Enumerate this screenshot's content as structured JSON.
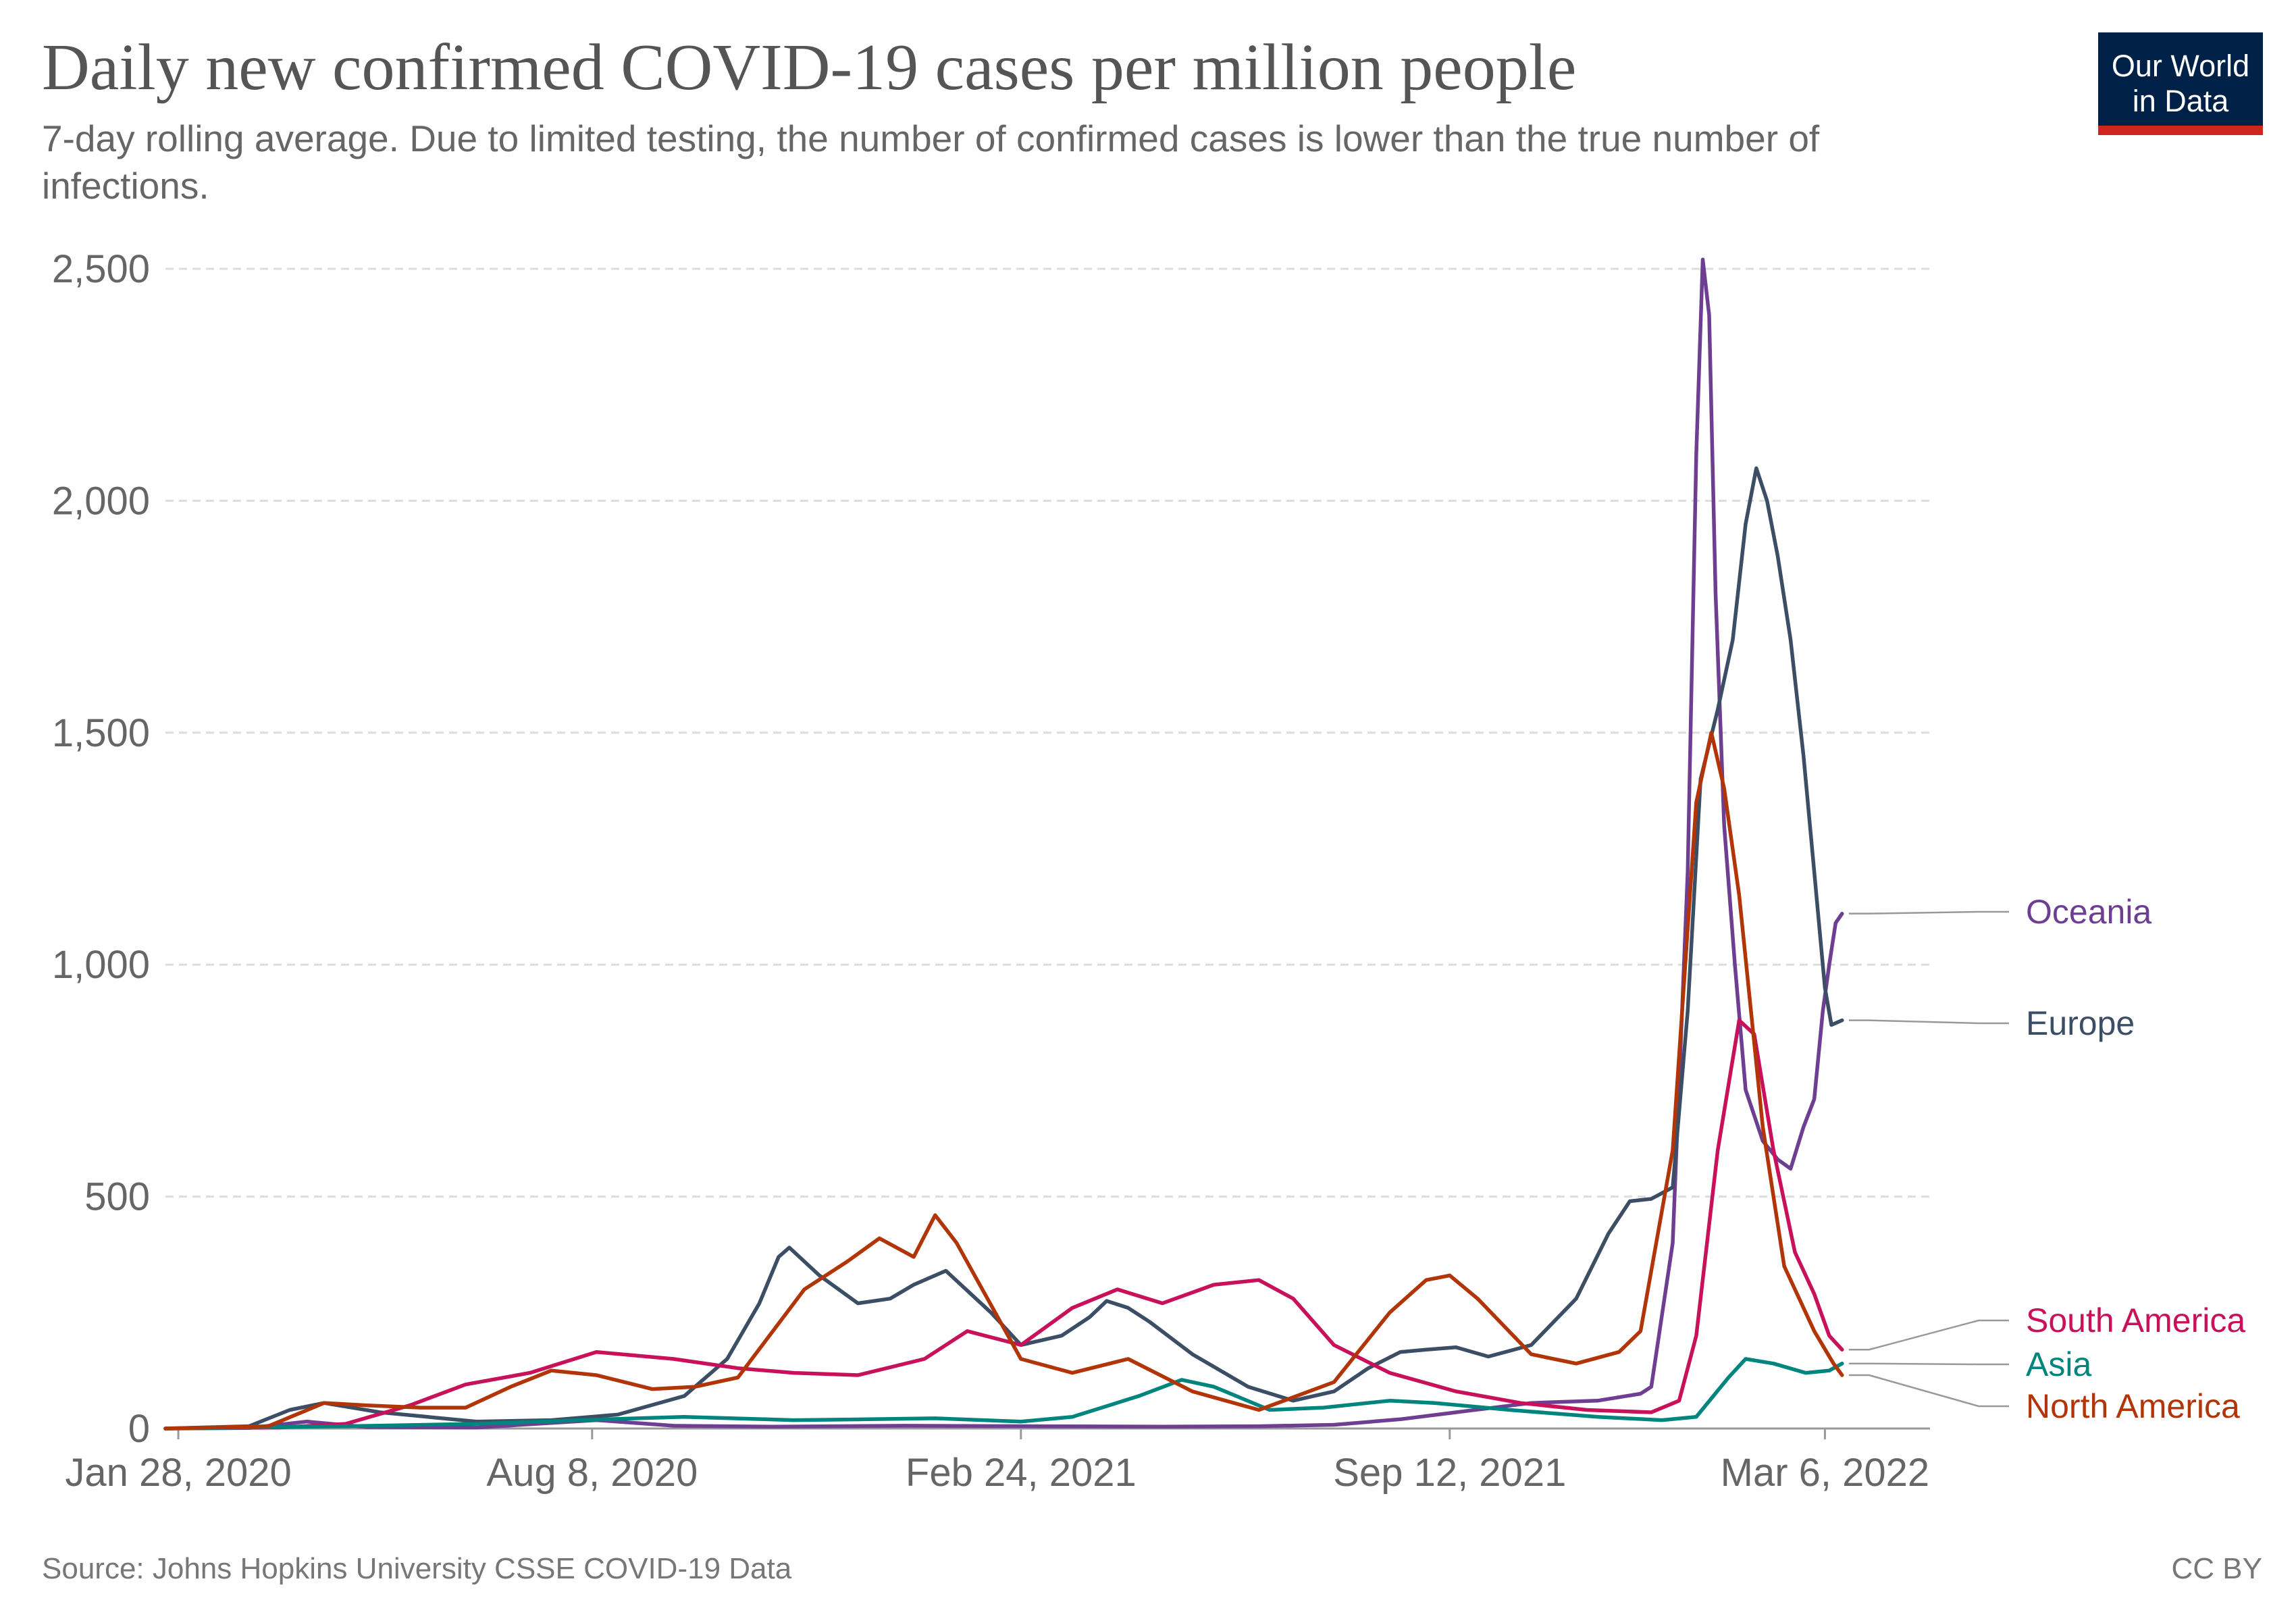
{
  "header": {
    "title": "Daily new confirmed COVID-19 cases per million people",
    "subtitle": "7-day rolling average. Due to limited testing, the number of confirmed cases is lower than the true number of infections."
  },
  "logo": {
    "line1": "Our World",
    "line2": "in Data",
    "bg_color": "#002147",
    "accent_color": "#ce261e"
  },
  "footer": {
    "source": "Source: Johns Hopkins University CSSE COVID-19 Data",
    "license": "CC BY"
  },
  "chart_data": {
    "type": "line",
    "title": "Daily new confirmed COVID-19 cases per million people",
    "xlabel": "",
    "ylabel": "",
    "xlim": [
      "2020-01-22",
      "2022-04-24"
    ],
    "ylim": [
      0,
      2500
    ],
    "x_ticks": [
      {
        "date": "2020-01-28",
        "label": "Jan 28, 2020"
      },
      {
        "date": "2020-08-08",
        "label": "Aug 8, 2020"
      },
      {
        "date": "2021-02-24",
        "label": "Feb 24, 2021"
      },
      {
        "date": "2021-09-12",
        "label": "Sep 12, 2021"
      },
      {
        "date": "2022-03-06",
        "label": "Mar 6, 2022"
      }
    ],
    "y_ticks": [
      {
        "value": 0,
        "label": "0"
      },
      {
        "value": 500,
        "label": "500"
      },
      {
        "value": 1000,
        "label": "1,000"
      },
      {
        "value": 1500,
        "label": "1,500"
      },
      {
        "value": 2000,
        "label": "2,000"
      },
      {
        "value": 2500,
        "label": "2,500"
      }
    ],
    "grid": "horizontal-dashed",
    "legend": "right",
    "series": [
      {
        "name": "Oceania",
        "color": "#6d3e91",
        "points": [
          [
            "2020-01-22",
            0
          ],
          [
            "2020-03-01",
            1
          ],
          [
            "2020-03-28",
            15
          ],
          [
            "2020-04-25",
            3
          ],
          [
            "2020-06-15",
            2
          ],
          [
            "2020-07-20",
            12
          ],
          [
            "2020-08-10",
            18
          ],
          [
            "2020-09-15",
            6
          ],
          [
            "2020-11-01",
            4
          ],
          [
            "2021-01-01",
            6
          ],
          [
            "2021-03-01",
            5
          ],
          [
            "2021-05-01",
            4
          ],
          [
            "2021-06-15",
            5
          ],
          [
            "2021-07-20",
            8
          ],
          [
            "2021-08-20",
            20
          ],
          [
            "2021-09-15",
            35
          ],
          [
            "2021-10-20",
            55
          ],
          [
            "2021-11-20",
            60
          ],
          [
            "2021-12-10",
            75
          ],
          [
            "2021-12-15",
            90
          ],
          [
            "2021-12-25",
            400
          ],
          [
            "2022-01-01",
            1200
          ],
          [
            "2022-01-05",
            2100
          ],
          [
            "2022-01-08",
            2520
          ],
          [
            "2022-01-11",
            2400
          ],
          [
            "2022-01-14",
            1800
          ],
          [
            "2022-01-18",
            1300
          ],
          [
            "2022-01-23",
            1000
          ],
          [
            "2022-01-28",
            730
          ],
          [
            "2022-02-05",
            620
          ],
          [
            "2022-02-12",
            580
          ],
          [
            "2022-02-18",
            560
          ],
          [
            "2022-02-24",
            650
          ],
          [
            "2022-03-01",
            710
          ],
          [
            "2022-03-05",
            900
          ],
          [
            "2022-03-08",
            1000
          ],
          [
            "2022-03-11",
            1090
          ],
          [
            "2022-03-14",
            1110
          ]
        ]
      },
      {
        "name": "Europe",
        "color": "#3c4e66",
        "points": [
          [
            "2020-01-22",
            0
          ],
          [
            "2020-03-01",
            5
          ],
          [
            "2020-03-20",
            40
          ],
          [
            "2020-04-05",
            55
          ],
          [
            "2020-05-01",
            35
          ],
          [
            "2020-06-15",
            15
          ],
          [
            "2020-07-20",
            18
          ],
          [
            "2020-08-20",
            30
          ],
          [
            "2020-09-20",
            70
          ],
          [
            "2020-10-10",
            150
          ],
          [
            "2020-10-25",
            270
          ],
          [
            "2020-11-03",
            370
          ],
          [
            "2020-11-08",
            390
          ],
          [
            "2020-11-22",
            330
          ],
          [
            "2020-12-10",
            270
          ],
          [
            "2020-12-25",
            280
          ],
          [
            "2021-01-05",
            310
          ],
          [
            "2021-01-20",
            340
          ],
          [
            "2021-02-10",
            250
          ],
          [
            "2021-02-24",
            180
          ],
          [
            "2021-03-15",
            200
          ],
          [
            "2021-03-28",
            240
          ],
          [
            "2021-04-05",
            275
          ],
          [
            "2021-04-15",
            260
          ],
          [
            "2021-04-25",
            230
          ],
          [
            "2021-05-15",
            160
          ],
          [
            "2021-06-10",
            90
          ],
          [
            "2021-07-01",
            60
          ],
          [
            "2021-07-20",
            80
          ],
          [
            "2021-08-05",
            130
          ],
          [
            "2021-08-20",
            165
          ],
          [
            "2021-09-01",
            170
          ],
          [
            "2021-09-15",
            175
          ],
          [
            "2021-09-30",
            155
          ],
          [
            "2021-10-20",
            180
          ],
          [
            "2021-11-10",
            280
          ],
          [
            "2021-11-25",
            420
          ],
          [
            "2021-12-05",
            490
          ],
          [
            "2021-12-15",
            495
          ],
          [
            "2021-12-25",
            520
          ],
          [
            "2022-01-01",
            900
          ],
          [
            "2022-01-07",
            1400
          ],
          [
            "2022-01-15",
            1550
          ],
          [
            "2022-01-22",
            1700
          ],
          [
            "2022-01-28",
            1950
          ],
          [
            "2022-02-02",
            2070
          ],
          [
            "2022-02-07",
            2000
          ],
          [
            "2022-02-12",
            1880
          ],
          [
            "2022-02-18",
            1700
          ],
          [
            "2022-02-24",
            1450
          ],
          [
            "2022-03-01",
            1200
          ],
          [
            "2022-03-06",
            950
          ],
          [
            "2022-03-09",
            870
          ],
          [
            "2022-03-14",
            880
          ]
        ]
      },
      {
        "name": "South America",
        "color": "#c8115a",
        "points": [
          [
            "2020-01-22",
            0
          ],
          [
            "2020-03-15",
            2
          ],
          [
            "2020-04-15",
            10
          ],
          [
            "2020-05-15",
            50
          ],
          [
            "2020-06-10",
            95
          ],
          [
            "2020-07-10",
            120
          ],
          [
            "2020-08-10",
            165
          ],
          [
            "2020-09-15",
            150
          ],
          [
            "2020-10-15",
            130
          ],
          [
            "2020-11-10",
            120
          ],
          [
            "2020-12-10",
            115
          ],
          [
            "2021-01-10",
            150
          ],
          [
            "2021-01-30",
            210
          ],
          [
            "2021-02-24",
            180
          ],
          [
            "2021-03-20",
            260
          ],
          [
            "2021-04-10",
            300
          ],
          [
            "2021-05-01",
            270
          ],
          [
            "2021-05-25",
            310
          ],
          [
            "2021-06-15",
            320
          ],
          [
            "2021-07-01",
            280
          ],
          [
            "2021-07-20",
            180
          ],
          [
            "2021-08-15",
            120
          ],
          [
            "2021-09-15",
            80
          ],
          [
            "2021-10-15",
            55
          ],
          [
            "2021-11-15",
            40
          ],
          [
            "2021-12-15",
            35
          ],
          [
            "2021-12-28",
            60
          ],
          [
            "2022-01-05",
            200
          ],
          [
            "2022-01-15",
            600
          ],
          [
            "2022-01-25",
            880
          ],
          [
            "2022-02-01",
            850
          ],
          [
            "2022-02-10",
            600
          ],
          [
            "2022-02-20",
            380
          ],
          [
            "2022-03-01",
            290
          ],
          [
            "2022-03-08",
            200
          ],
          [
            "2022-03-14",
            170
          ]
        ]
      },
      {
        "name": "Asia",
        "color": "#00847e",
        "points": [
          [
            "2020-01-22",
            0
          ],
          [
            "2020-03-01",
            2
          ],
          [
            "2020-04-15",
            5
          ],
          [
            "2020-06-15",
            10
          ],
          [
            "2020-08-15",
            20
          ],
          [
            "2020-09-20",
            25
          ],
          [
            "2020-11-10",
            18
          ],
          [
            "2020-12-15",
            20
          ],
          [
            "2021-01-15",
            22
          ],
          [
            "2021-02-24",
            15
          ],
          [
            "2021-03-20",
            25
          ],
          [
            "2021-04-20",
            70
          ],
          [
            "2021-05-10",
            105
          ],
          [
            "2021-05-25",
            90
          ],
          [
            "2021-06-20",
            40
          ],
          [
            "2021-07-15",
            45
          ],
          [
            "2021-08-15",
            60
          ],
          [
            "2021-09-05",
            55
          ],
          [
            "2021-10-10",
            40
          ],
          [
            "2021-11-20",
            25
          ],
          [
            "2021-12-20",
            18
          ],
          [
            "2022-01-05",
            25
          ],
          [
            "2022-01-20",
            110
          ],
          [
            "2022-01-28",
            150
          ],
          [
            "2022-02-10",
            140
          ],
          [
            "2022-02-25",
            120
          ],
          [
            "2022-03-08",
            125
          ],
          [
            "2022-03-14",
            140
          ]
        ]
      },
      {
        "name": "North America",
        "color": "#b13507",
        "points": [
          [
            "2020-01-22",
            0
          ],
          [
            "2020-03-10",
            5
          ],
          [
            "2020-04-05",
            55
          ],
          [
            "2020-04-25",
            50
          ],
          [
            "2020-05-20",
            45
          ],
          [
            "2020-06-10",
            45
          ],
          [
            "2020-07-01",
            90
          ],
          [
            "2020-07-20",
            125
          ],
          [
            "2020-08-10",
            115
          ],
          [
            "2020-09-05",
            85
          ],
          [
            "2020-09-25",
            90
          ],
          [
            "2020-10-15",
            110
          ],
          [
            "2020-11-15",
            300
          ],
          [
            "2020-12-05",
            360
          ],
          [
            "2020-12-20",
            410
          ],
          [
            "2021-01-05",
            370
          ],
          [
            "2021-01-15",
            460
          ],
          [
            "2021-01-25",
            400
          ],
          [
            "2021-02-24",
            150
          ],
          [
            "2021-03-20",
            120
          ],
          [
            "2021-04-15",
            150
          ],
          [
            "2021-05-15",
            80
          ],
          [
            "2021-06-15",
            40
          ],
          [
            "2021-07-20",
            100
          ],
          [
            "2021-08-15",
            250
          ],
          [
            "2021-09-01",
            320
          ],
          [
            "2021-09-12",
            330
          ],
          [
            "2021-09-25",
            280
          ],
          [
            "2021-10-20",
            160
          ],
          [
            "2021-11-10",
            140
          ],
          [
            "2021-11-30",
            165
          ],
          [
            "2021-12-10",
            210
          ],
          [
            "2021-12-25",
            600
          ],
          [
            "2022-01-05",
            1350
          ],
          [
            "2022-01-12",
            1500
          ],
          [
            "2022-01-18",
            1380
          ],
          [
            "2022-01-25",
            1150
          ],
          [
            "2022-02-05",
            650
          ],
          [
            "2022-02-15",
            350
          ],
          [
            "2022-03-01",
            210
          ],
          [
            "2022-03-10",
            140
          ],
          [
            "2022-03-14",
            115
          ]
        ]
      }
    ]
  }
}
